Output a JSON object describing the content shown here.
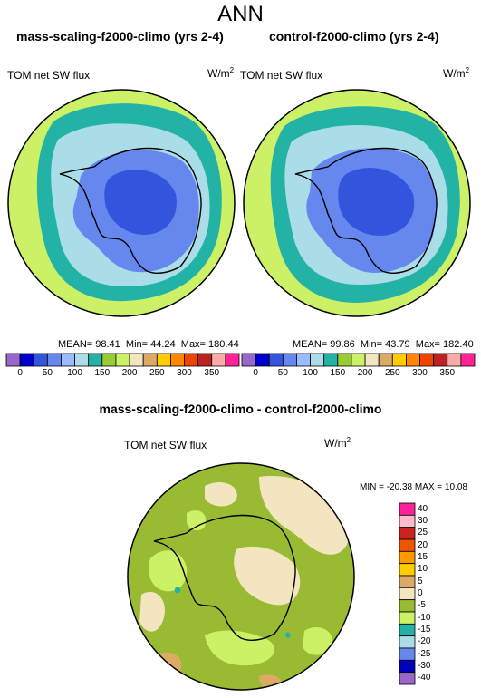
{
  "title": "ANN",
  "panels": [
    {
      "title": "mass-scaling-f2000-climo (yrs 2-4)",
      "variable": "TOM net SW flux",
      "units": "W/m",
      "units_sup": "2",
      "stats": {
        "mean": "MEAN=  98.41",
        "min": "Min=  44.24",
        "max": "Max= 180.44"
      }
    },
    {
      "title": "control-f2000-climo (yrs 2-4)",
      "variable": "TOM net SW flux",
      "units": "W/m",
      "units_sup": "2",
      "stats": {
        "mean": "MEAN=  99.86",
        "min": "Min=  43.79",
        "max": "Max= 182.40"
      }
    }
  ],
  "colorbar": {
    "labels": [
      "0",
      "50",
      "100",
      "150",
      "200",
      "250",
      "300",
      "350"
    ],
    "colors": [
      "#9966cc",
      "#0000cc",
      "#3355dd",
      "#6688ee",
      "#99bbff",
      "#aadde8",
      "#22b3a6",
      "#99cc33",
      "#ccf066",
      "#f3e5c0",
      "#ddaa66",
      "#ffcc00",
      "#ff8800",
      "#ee4400",
      "#bb2222",
      "#ffaaaa",
      "#ff2299"
    ]
  },
  "diff": {
    "title": "mass-scaling-f2000-climo - control-f2000-climo",
    "variable": "TOM net SW flux",
    "units": "W/m",
    "units_sup": "2",
    "minmax": "MIN = -20.38  MAX =  10.08",
    "colorbar_labels": [
      "40",
      "30",
      "25",
      "20",
      "15",
      "10",
      "5",
      "0",
      "-5",
      "-10",
      "-15",
      "-20",
      "-25",
      "-30",
      "-40"
    ],
    "colorbar_colors": [
      "#ff2299",
      "#ffbbcc",
      "#cc2222",
      "#ee5500",
      "#ff9900",
      "#ffcc00",
      "#ddaa66",
      "#f3e5c0",
      "#99bb33",
      "#ccf066",
      "#22b3a6",
      "#aadde8",
      "#6688ee",
      "#0000bb",
      "#9966cc"
    ]
  }
}
